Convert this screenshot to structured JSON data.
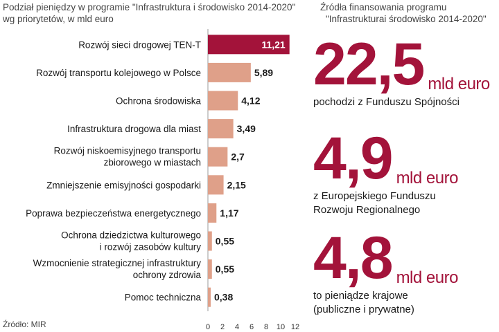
{
  "header_left": {
    "line1": "Podział pieniędzy w programie \"Infrastruktura i środowisko 2014-2020\"",
    "line2": "wg priorytetów, w mld euro"
  },
  "header_right": {
    "line1": "Źródła finansowania programu",
    "line2": "\"Infrastrukturai środowisko 2014-2020\""
  },
  "source": "Źródło: MIR",
  "colors": {
    "highlight": "#a3133a",
    "bar": "#dfa089",
    "axis": "#999999"
  },
  "chart_data": {
    "type": "bar",
    "orientation": "horizontal",
    "categories": [
      [
        "Rozwój sieci drogowej TEN-T"
      ],
      [
        "Rozwój transportu kolejowego w Polsce"
      ],
      [
        "Ochrona środowiska"
      ],
      [
        "Infrastruktura drogowa dla miast"
      ],
      [
        "Rozwój niskoemisyjnego transportu",
        "zbiorowego w miastach"
      ],
      [
        "Zmniejszenie emisyjności gospodarki"
      ],
      [
        "Poprawa bezpieczeństwa energetycznego"
      ],
      [
        "Ochrona dziedzictwa kulturowego",
        "i rozwój zasobów kultury"
      ],
      [
        "Wzmocnienie strategicznej infrastruktury",
        "ochrony zdrowia"
      ],
      [
        "Pomoc techniczna"
      ]
    ],
    "values": [
      11.21,
      5.89,
      4.12,
      3.49,
      2.7,
      2.15,
      1.17,
      0.55,
      0.55,
      0.38
    ],
    "value_labels": [
      "11,21",
      "5,89",
      "4,12",
      "3,49",
      "2,7",
      "2,15",
      "1,17",
      "0,55",
      "0,55",
      "0,38"
    ],
    "xlim": [
      0,
      12
    ],
    "ticks": [
      "0",
      "2",
      "4",
      "6",
      "8",
      "10",
      "12"
    ],
    "highlight_index": 0
  },
  "stats": [
    {
      "value": "22,5",
      "unit": "mld euro",
      "desc": [
        "pochodzi z Funduszu  Spójności"
      ]
    },
    {
      "value": "4,9",
      "unit": "mld euro",
      "desc": [
        "z Europejskiego Funduszu",
        "Rozwoju Regionalnego"
      ]
    },
    {
      "value": "4,8",
      "unit": "mld euro",
      "desc": [
        "to pieniądze krajowe",
        "(publiczne i prywatne)"
      ]
    }
  ]
}
